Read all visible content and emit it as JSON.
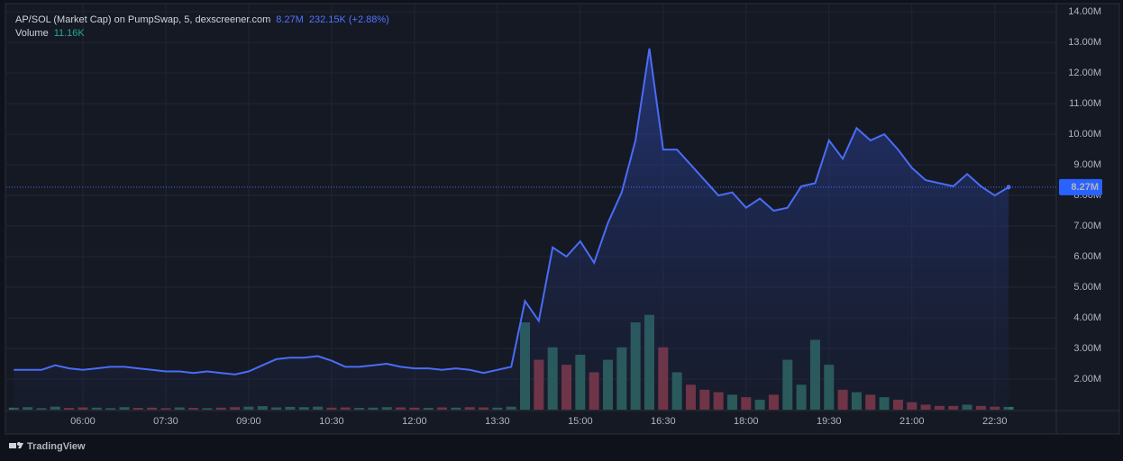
{
  "chart_data": {
    "type": "line",
    "title": "AP/SOL (Market Cap) on PumpSwap, 5, dexscreener.com",
    "last_label": "8.27M",
    "change_label": "232.15K (+2.88%)",
    "brand": "TradingView",
    "categories": [
      null,
      null,
      null,
      null,
      null,
      "06:00",
      null,
      null,
      null,
      null,
      null,
      "07:30",
      null,
      null,
      null,
      null,
      null,
      "09:00",
      null,
      null,
      null,
      null,
      null,
      "10:30",
      null,
      null,
      null,
      null,
      null,
      "12:00",
      null,
      null,
      null,
      null,
      null,
      "13:30",
      null,
      null,
      null,
      null,
      null,
      "15:00",
      null,
      null,
      null,
      null,
      null,
      "16:30",
      null,
      null,
      null,
      null,
      null,
      "18:00",
      null,
      null,
      null,
      null,
      null,
      "19:30",
      null,
      null,
      null,
      null,
      null,
      "21:00",
      null,
      null,
      null,
      null,
      null,
      "22:30",
      null
    ],
    "series": [
      {
        "name": "Market Cap",
        "color": "#4a6cf7",
        "values": [
          2.3,
          2.3,
          2.3,
          2.45,
          2.35,
          2.3,
          2.35,
          2.4,
          2.4,
          2.35,
          2.3,
          2.25,
          2.25,
          2.2,
          2.25,
          2.2,
          2.15,
          2.25,
          2.45,
          2.65,
          2.7,
          2.7,
          2.75,
          2.6,
          2.4,
          2.4,
          2.45,
          2.5,
          2.4,
          2.35,
          2.35,
          2.3,
          2.35,
          2.3,
          2.2,
          2.3,
          2.4,
          4.55,
          3.9,
          6.3,
          6.0,
          6.5,
          5.8,
          7.1,
          8.1,
          9.8,
          12.8,
          9.5,
          9.5,
          9.0,
          8.5,
          8.0,
          8.1,
          7.6,
          7.9,
          7.5,
          7.6,
          8.3,
          8.4,
          9.8,
          9.2,
          10.2,
          9.8,
          10.0,
          9.5,
          8.9,
          8.5,
          8.4,
          8.3,
          8.7,
          8.3,
          8.0,
          8.27
        ]
      }
    ],
    "volume": {
      "name": "Volume",
      "last_label": "11.16K",
      "up_color": "#2e6d62",
      "down_color": "#8c3a48",
      "ylim": [
        0,
        415
      ],
      "values": [
        8,
        10,
        6,
        12,
        7,
        9,
        8,
        6,
        10,
        7,
        8,
        6,
        9,
        7,
        6,
        8,
        10,
        12,
        14,
        9,
        11,
        10,
        12,
        8,
        9,
        7,
        8,
        10,
        9,
        8,
        7,
        9,
        8,
        10,
        9,
        8,
        12,
        350,
        200,
        250,
        180,
        220,
        150,
        200,
        250,
        350,
        380,
        250,
        150,
        100,
        80,
        70,
        60,
        50,
        40,
        60,
        200,
        100,
        280,
        180,
        80,
        70,
        60,
        50,
        40,
        30,
        20,
        15,
        15,
        20,
        15,
        12,
        11.16
      ]
    },
    "ylim": [
      1,
      14.15
    ],
    "yticks": [
      {
        "value": 2,
        "label": "2.00M"
      },
      {
        "value": 3,
        "label": "3.00M"
      },
      {
        "value": 4,
        "label": "4.00M"
      },
      {
        "value": 5,
        "label": "5.00M"
      },
      {
        "value": 6,
        "label": "6.00M"
      },
      {
        "value": 7,
        "label": "7.00M"
      },
      {
        "value": 8,
        "label": "8.00M"
      },
      {
        "value": 9,
        "label": "9.00M"
      },
      {
        "value": 10,
        "label": "10.00M"
      },
      {
        "value": 11,
        "label": "11.00M"
      },
      {
        "value": 12,
        "label": "12.00M"
      },
      {
        "value": 13,
        "label": "13.00M"
      },
      {
        "value": 14,
        "label": "14.00M"
      }
    ],
    "grid": true
  }
}
